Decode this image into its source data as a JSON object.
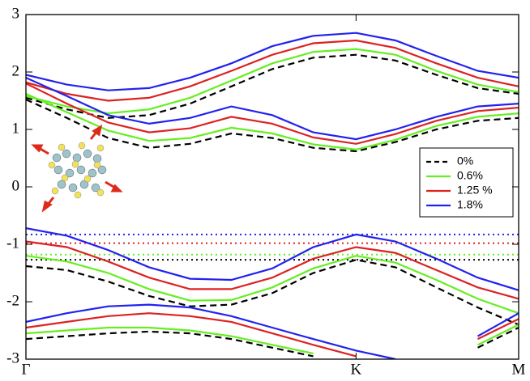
{
  "chart_data": {
    "type": "line",
    "x": [
      0,
      0.083,
      0.167,
      0.25,
      0.333,
      0.417,
      0.5,
      0.583,
      0.67,
      0.75,
      0.833,
      0.917,
      1.0
    ],
    "xlim": [
      0,
      1
    ],
    "xticks": [
      {
        "value": 0,
        "label": "Γ"
      },
      {
        "value": 0.67,
        "label": "K"
      },
      {
        "value": 1,
        "label": "M"
      }
    ],
    "ylim": [
      -3,
      3
    ],
    "yticks": [
      -3,
      -2,
      -1,
      0,
      1,
      2,
      3
    ],
    "series": [
      {
        "name": "0%",
        "color": "#000000",
        "dash": true,
        "level": -1.27,
        "bands": [
          [
            -1.38,
            -1.45,
            -1.65,
            -1.9,
            -2.08,
            -2.05,
            -1.85,
            -1.5,
            -1.27,
            -1.4,
            -1.75,
            -2.1,
            -2.4
          ],
          [
            1.52,
            1.2,
            0.85,
            0.68,
            0.75,
            0.93,
            0.85,
            0.68,
            0.62,
            0.78,
            1.0,
            1.15,
            1.2
          ],
          [
            1.55,
            1.35,
            1.2,
            1.25,
            1.45,
            1.75,
            2.05,
            2.25,
            2.3,
            2.2,
            1.95,
            1.72,
            1.62
          ],
          [
            -2.65,
            -2.6,
            -2.55,
            -2.52,
            -2.55,
            -2.65,
            -2.8,
            -2.95,
            null,
            null,
            null,
            -2.8,
            -2.45
          ]
        ]
      },
      {
        "name": "0.6%",
        "color": "#66ee22",
        "dash": false,
        "level": -1.18,
        "bands": [
          [
            -1.2,
            -1.3,
            -1.5,
            -1.78,
            -1.98,
            -1.97,
            -1.75,
            -1.42,
            -1.2,
            -1.32,
            -1.62,
            -1.95,
            -2.2
          ],
          [
            1.62,
            1.3,
            0.98,
            0.8,
            0.85,
            1.03,
            0.93,
            0.74,
            0.65,
            0.82,
            1.06,
            1.22,
            1.28
          ],
          [
            1.58,
            1.4,
            1.28,
            1.35,
            1.55,
            1.85,
            2.15,
            2.35,
            2.4,
            2.3,
            2.02,
            1.78,
            1.65
          ],
          [
            -2.55,
            -2.5,
            -2.45,
            -2.45,
            -2.5,
            -2.6,
            -2.75,
            -2.9,
            null,
            null,
            null,
            -2.75,
            -2.4
          ]
        ]
      },
      {
        "name": "1.25 %",
        "color": "#dd2222",
        "dash": false,
        "level": -0.98,
        "bands": [
          [
            -0.95,
            -1.05,
            -1.3,
            -1.58,
            -1.78,
            -1.78,
            -1.58,
            -1.25,
            -1.05,
            -1.15,
            -1.45,
            -1.75,
            -1.95
          ],
          [
            1.8,
            1.45,
            1.12,
            0.95,
            1.02,
            1.22,
            1.1,
            0.86,
            0.75,
            0.92,
            1.15,
            1.32,
            1.38
          ],
          [
            1.82,
            1.62,
            1.5,
            1.55,
            1.75,
            2.02,
            2.3,
            2.5,
            2.55,
            2.42,
            2.15,
            1.9,
            1.75
          ],
          [
            -2.45,
            -2.35,
            -2.25,
            -2.2,
            -2.25,
            -2.35,
            -2.55,
            -2.75,
            -2.95,
            null,
            null,
            -2.65,
            -2.3
          ]
        ]
      },
      {
        "name": "1.8%",
        "color": "#2222ee",
        "dash": false,
        "level": -0.83,
        "bands": [
          [
            -0.72,
            -0.85,
            -1.1,
            -1.4,
            -1.6,
            -1.62,
            -1.42,
            -1.05,
            -0.83,
            -0.95,
            -1.25,
            -1.58,
            -1.8
          ],
          [
            1.9,
            1.58,
            1.25,
            1.1,
            1.2,
            1.4,
            1.25,
            0.95,
            0.83,
            1.0,
            1.22,
            1.4,
            1.45
          ],
          [
            1.95,
            1.78,
            1.68,
            1.72,
            1.9,
            2.15,
            2.45,
            2.63,
            2.68,
            2.55,
            2.28,
            2.02,
            1.9
          ],
          [
            -2.35,
            -2.2,
            -2.08,
            -2.05,
            -2.1,
            -2.25,
            -2.45,
            -2.65,
            -2.85,
            -3.0,
            null,
            -2.6,
            -2.2
          ]
        ]
      }
    ],
    "legend": "right"
  }
}
